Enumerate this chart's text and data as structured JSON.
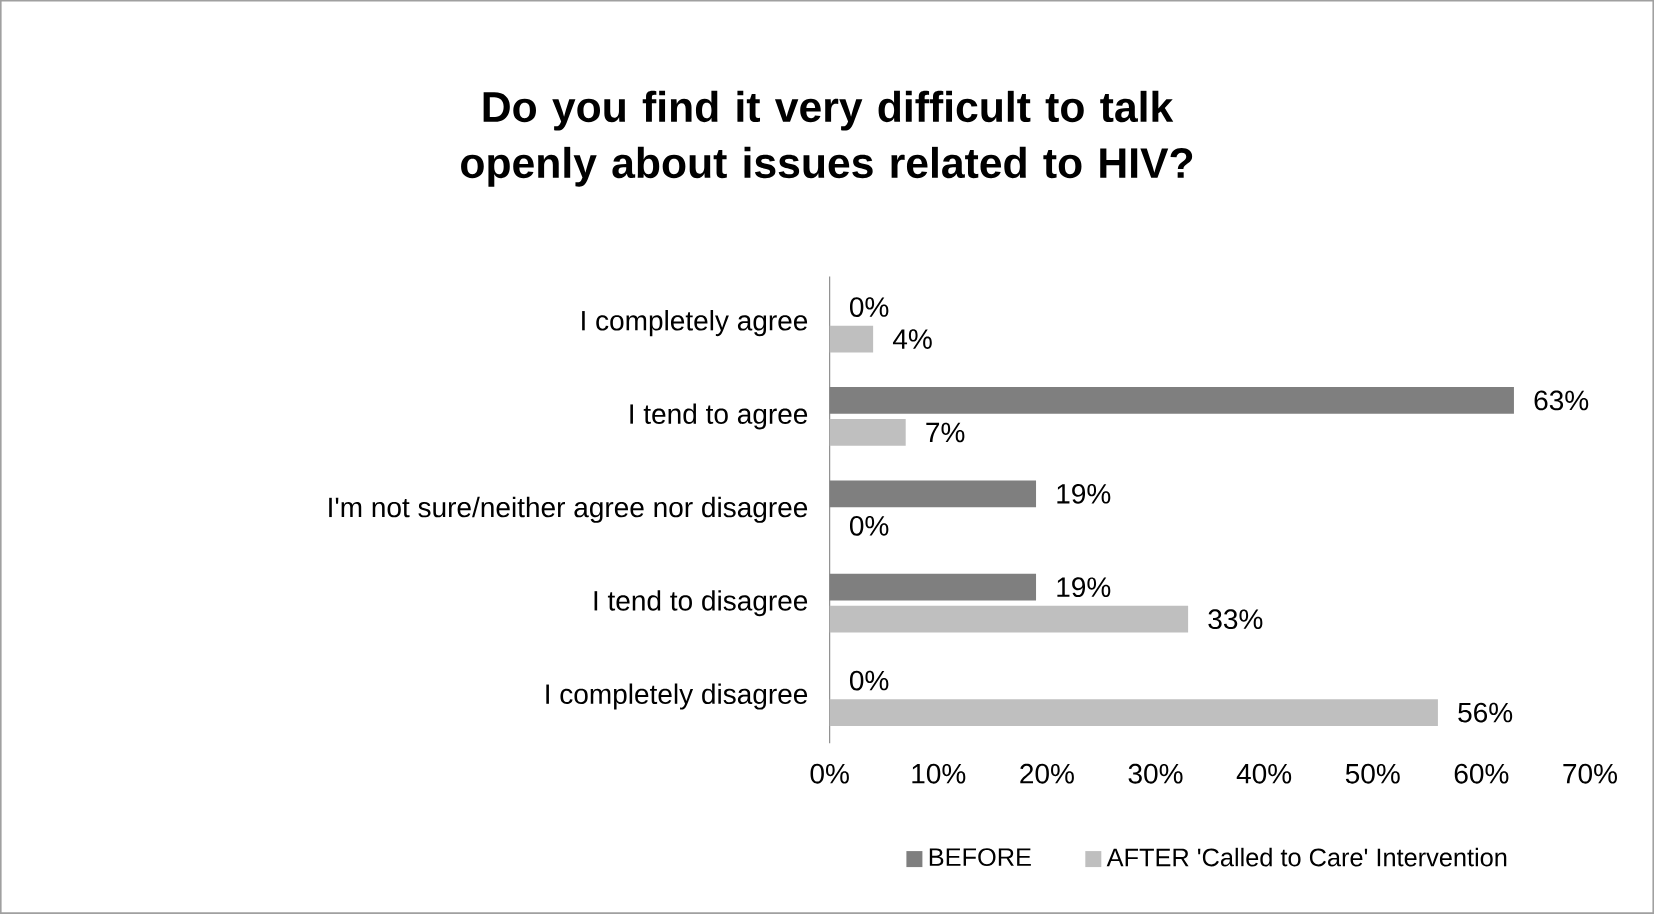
{
  "chart_data": {
    "type": "bar",
    "orientation": "horizontal",
    "title": "Do you find it very difficult to talk openly about issues related to HIV?",
    "categories": [
      "I completely agree",
      "I tend to agree",
      "I'm not sure/neither agree nor disagree",
      "I tend to disagree",
      "I completely disagree"
    ],
    "series": [
      {
        "name": "BEFORE",
        "color": "#7f7f7f",
        "values": [
          0,
          63,
          19,
          19,
          0
        ],
        "value_labels": [
          "0%",
          "63%",
          "19%",
          "19%",
          "0%"
        ]
      },
      {
        "name": "AFTER 'Called to Care' Intervention",
        "color": "#bfbfbf",
        "values": [
          4,
          7,
          0,
          33,
          56
        ],
        "value_labels": [
          "4%",
          "7%",
          "0%",
          "33%",
          "56%"
        ]
      }
    ],
    "xlim": [
      0,
      70
    ],
    "xticks": [
      {
        "value": 0,
        "label": "0%"
      },
      {
        "value": 10,
        "label": "10%"
      },
      {
        "value": 20,
        "label": "20%"
      },
      {
        "value": 30,
        "label": "30%"
      },
      {
        "value": 40,
        "label": "40%"
      },
      {
        "value": 50,
        "label": "50%"
      },
      {
        "value": 60,
        "label": "60%"
      },
      {
        "value": 70,
        "label": "70%"
      }
    ],
    "legend": "bottom"
  }
}
